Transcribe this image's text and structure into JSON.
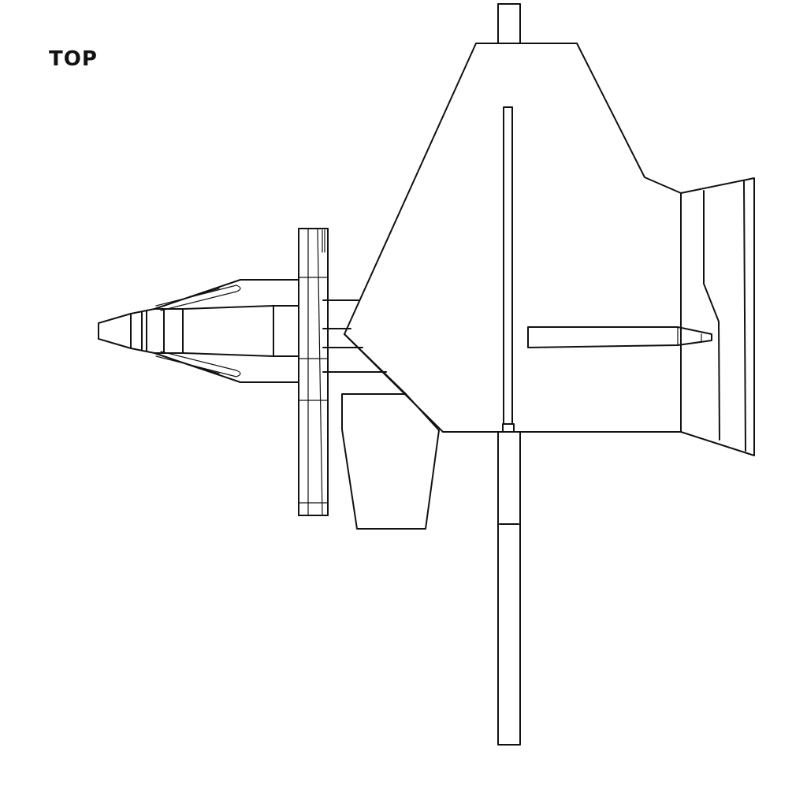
{
  "view": {
    "label": "TOP"
  },
  "colors": {
    "line": "#111111",
    "background": "#ffffff"
  }
}
